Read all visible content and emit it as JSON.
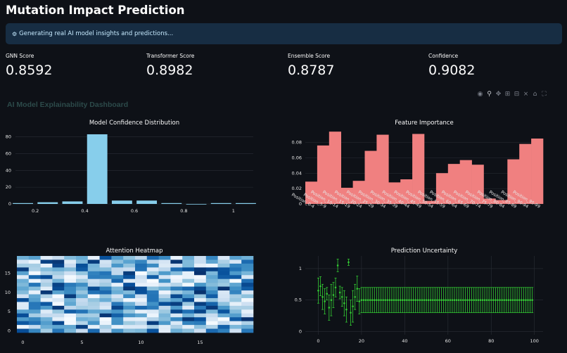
{
  "page": {
    "title": "Mutation Impact Prediction"
  },
  "info": {
    "icon": "robot-icon",
    "text": "Generating real AI model insights and predictions..."
  },
  "metrics": [
    {
      "label": "GNN Score",
      "value": "0.8592"
    },
    {
      "label": "Transformer Score",
      "value": "0.8982"
    },
    {
      "label": "Ensemble Score",
      "value": "0.8787"
    },
    {
      "label": "Confidence",
      "value": "0.9082"
    }
  ],
  "dashboard": {
    "title": "AI Model Explainability Dashboard"
  },
  "modebar": [
    "camera-icon",
    "zoom-icon",
    "pan-icon",
    "zoom-in-icon",
    "zoom-out-icon",
    "autoscale-icon",
    "reset-axes-icon",
    "fullscreen-icon"
  ],
  "chart_data": [
    {
      "type": "bar",
      "title": "Model Confidence Distribution",
      "bar_color": "#87ceeb",
      "x": [
        0.15,
        0.25,
        0.35,
        0.45,
        0.55,
        0.65,
        0.75,
        0.85,
        0.95,
        1.05
      ],
      "values": [
        1,
        2,
        3,
        83,
        4,
        4,
        1,
        0,
        1,
        1
      ],
      "xticks": [
        "0.2",
        "0.4",
        "0.6",
        "0.8",
        "1"
      ],
      "xtick_values": [
        0.2,
        0.4,
        0.6,
        0.8,
        1.0
      ],
      "yticks": [
        "0",
        "20",
        "40",
        "60",
        "80"
      ],
      "ylim": [
        0,
        88
      ]
    },
    {
      "type": "bar",
      "title": "Feature Importance",
      "bar_color": "#f08080",
      "categories": [
        "Position_0-4",
        "Position_5-9",
        "Position_10-14",
        "Position_15-19",
        "Position_20-24",
        "Position_25-29",
        "Position_30-34",
        "Position_35-39",
        "Position_40-44",
        "Position_45-49",
        "Position_50-54",
        "Position_55-59",
        "Position_60-64",
        "Position_65-69",
        "Position_70-74",
        "Position_75-79",
        "Position_80-84",
        "Position_85-89",
        "Position_90-94",
        "Position_95-99"
      ],
      "values": [
        0.029,
        0.076,
        0.094,
        0.021,
        0.03,
        0.069,
        0.09,
        0.028,
        0.032,
        0.091,
        0.004,
        0.04,
        0.052,
        0.057,
        0.051,
        0.007,
        0.005,
        0.058,
        0.078,
        0.085
      ],
      "yticks": [
        "0",
        "0.02",
        "0.04",
        "0.06",
        "0.08"
      ],
      "ylim": [
        0,
        0.096
      ]
    },
    {
      "type": "heatmap",
      "title": "Attention Heatmap",
      "colorscale": "Blues",
      "rows": 20,
      "cols": 20,
      "xticks": [
        "0",
        "5",
        "10",
        "15"
      ],
      "yticks": [
        "0",
        "5",
        "10",
        "15"
      ]
    },
    {
      "type": "scatter",
      "title": "Prediction Uncertainty",
      "color": "#33cc33",
      "x": [
        0,
        1,
        2,
        3,
        4,
        5,
        6,
        7,
        8,
        9,
        10,
        11,
        12,
        13,
        14,
        15,
        16,
        17,
        18,
        19
      ],
      "y": [
        0.65,
        0.72,
        0.55,
        0.48,
        0.6,
        0.38,
        0.5,
        0.58,
        0.7,
        1.05,
        0.62,
        0.55,
        0.45,
        0.35,
        1.1,
        0.3,
        0.4,
        0.55,
        0.68,
        0.48
      ],
      "error": [
        0.2,
        0.15,
        0.2,
        0.2,
        0.1,
        0.2,
        0.25,
        0.2,
        0.15,
        0.1,
        0.1,
        0.15,
        0.2,
        0.2,
        0.05,
        0.2,
        0.25,
        0.2,
        0.2,
        0.2
      ],
      "tail_start": 20,
      "tail_end": 99,
      "tail_y": 0.5,
      "tail_error": 0.2,
      "xticks": [
        "0",
        "20",
        "40",
        "60",
        "80",
        "100"
      ],
      "yticks": [
        "0",
        "0.5",
        "1"
      ],
      "xlim": [
        -6,
        104
      ],
      "ylim": [
        -0.05,
        1.2
      ]
    }
  ]
}
